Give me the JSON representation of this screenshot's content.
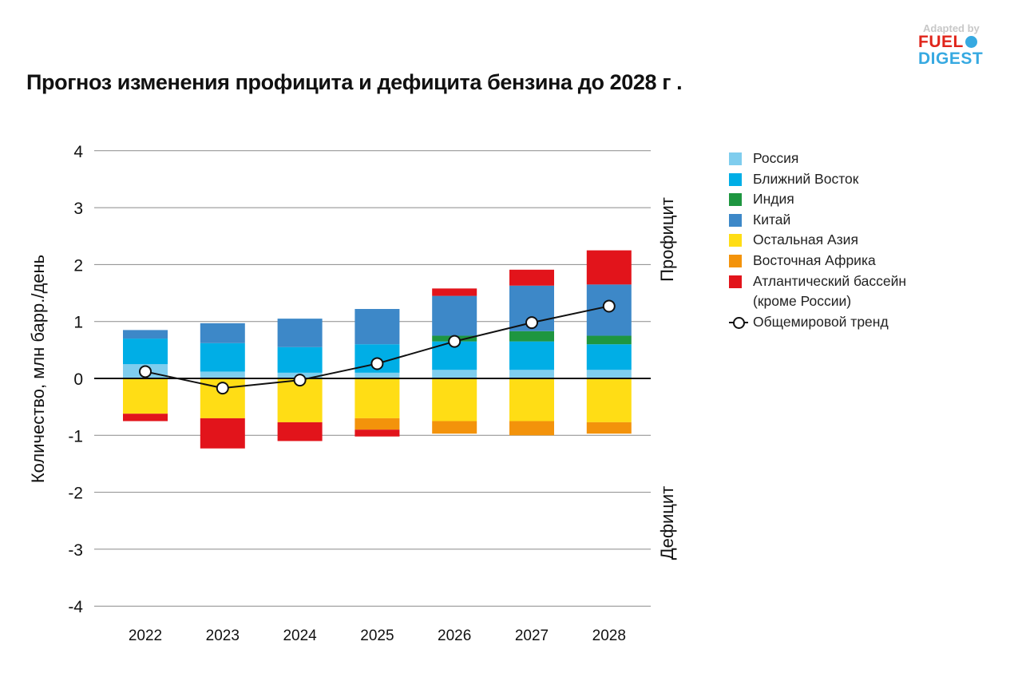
{
  "logo": {
    "line1": "Adapted by",
    "line2": "FUEL",
    "line3": "DIGEST"
  },
  "chart_data": {
    "type": "bar",
    "stacked": true,
    "title": "Прогноз изменения профицита и дефицита бензина до 2028 г .",
    "ylabel": "Количество, млн барр./день",
    "right_labels": {
      "top": "Профицит",
      "bottom": "Дефицит"
    },
    "ylim": [
      -4,
      4
    ],
    "yticks": [
      4,
      3,
      2,
      1,
      0,
      -1,
      -2,
      -3,
      -4
    ],
    "grid": true,
    "legend_position": "right",
    "categories": [
      "2022",
      "2023",
      "2024",
      "2025",
      "2026",
      "2027",
      "2028"
    ],
    "series": [
      {
        "name": "Россия",
        "color": "#7fcdee",
        "values": [
          0.25,
          0.12,
          0.1,
          0.1,
          0.15,
          0.15,
          0.15
        ]
      },
      {
        "name": "Ближний Восток",
        "color": "#00aee6",
        "values": [
          0.45,
          0.5,
          0.45,
          0.5,
          0.5,
          0.5,
          0.45
        ]
      },
      {
        "name": "Индия",
        "color": "#1e9640",
        "values": [
          0,
          0,
          0,
          0,
          0.1,
          0.18,
          0.15
        ]
      },
      {
        "name": "Китай",
        "color": "#3d88c8",
        "values": [
          0.15,
          0.35,
          0.5,
          0.62,
          0.7,
          0.8,
          0.9
        ]
      },
      {
        "name": "Остальная Азия",
        "color": "#ffdd15",
        "values": [
          -0.62,
          -0.7,
          -0.77,
          -0.7,
          -0.75,
          -0.75,
          -0.77
        ]
      },
      {
        "name": "Восточная Африка",
        "color": "#f3930b",
        "values": [
          0,
          0,
          0,
          -0.2,
          -0.22,
          -0.25,
          -0.2
        ]
      },
      {
        "name": "Атлантический бассейн\n(кроме России)",
        "color": "#e2141b",
        "values": [
          -0.13,
          -0.53,
          -0.33,
          -0.12,
          0.13,
          0.28,
          0.6
        ]
      },
      {
        "name": "Общемировой тренд",
        "type": "line",
        "color": "#111111",
        "values": [
          0.12,
          -0.17,
          -0.03,
          0.26,
          0.65,
          0.98,
          1.27
        ]
      }
    ]
  }
}
